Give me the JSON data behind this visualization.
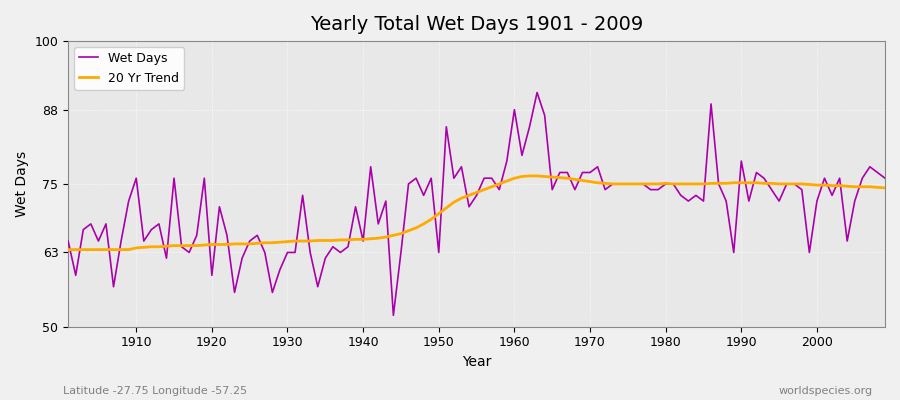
{
  "title": "Yearly Total Wet Days 1901 - 2009",
  "xlabel": "Year",
  "ylabel": "Wet Days",
  "subtitle": "Latitude -27.75 Longitude -57.25",
  "watermark": "worldspecies.org",
  "ylim": [
    50,
    100
  ],
  "yticks": [
    50,
    63,
    75,
    88,
    100
  ],
  "fig_facecolor": "#f0f0f0",
  "plot_bg_color": "#e8e8e8",
  "wet_days_color": "#aa00aa",
  "trend_color": "#ffaa00",
  "legend_wet": "Wet Days",
  "legend_trend": "20 Yr Trend",
  "years": [
    1901,
    1902,
    1903,
    1904,
    1905,
    1906,
    1907,
    1908,
    1909,
    1910,
    1911,
    1912,
    1913,
    1914,
    1915,
    1916,
    1917,
    1918,
    1919,
    1920,
    1921,
    1922,
    1923,
    1924,
    1925,
    1926,
    1927,
    1928,
    1929,
    1930,
    1931,
    1932,
    1933,
    1934,
    1935,
    1936,
    1937,
    1938,
    1939,
    1940,
    1941,
    1942,
    1943,
    1944,
    1945,
    1946,
    1947,
    1948,
    1949,
    1950,
    1951,
    1952,
    1953,
    1954,
    1955,
    1956,
    1957,
    1958,
    1959,
    1960,
    1961,
    1962,
    1963,
    1964,
    1965,
    1966,
    1967,
    1968,
    1969,
    1970,
    1971,
    1972,
    1973,
    1974,
    1975,
    1976,
    1977,
    1978,
    1979,
    1980,
    1981,
    1982,
    1983,
    1984,
    1985,
    1986,
    1987,
    1988,
    1989,
    1990,
    1991,
    1992,
    1993,
    1994,
    1995,
    1996,
    1997,
    1998,
    1999,
    2000,
    2001,
    2002,
    2003,
    2004,
    2005,
    2006,
    2007,
    2008,
    2009
  ],
  "wet_days": [
    65,
    59,
    67,
    68,
    65,
    68,
    57,
    65,
    72,
    76,
    65,
    67,
    68,
    62,
    76,
    64,
    63,
    66,
    76,
    59,
    71,
    66,
    56,
    62,
    65,
    66,
    63,
    56,
    60,
    63,
    63,
    73,
    63,
    57,
    62,
    64,
    63,
    64,
    71,
    65,
    78,
    68,
    72,
    52,
    63,
    75,
    76,
    73,
    76,
    63,
    85,
    76,
    78,
    71,
    73,
    76,
    76,
    74,
    79,
    88,
    80,
    85,
    91,
    87,
    74,
    77,
    77,
    74,
    77,
    77,
    78,
    74,
    75,
    75,
    75,
    75,
    75,
    74,
    74,
    75,
    75,
    73,
    72,
    73,
    72,
    89,
    75,
    72,
    63,
    79,
    72,
    77,
    76,
    74,
    72,
    75,
    75,
    74,
    63,
    72,
    76,
    73,
    76,
    65,
    72,
    76,
    78,
    77,
    76
  ],
  "trend_years": [
    1901,
    1902,
    1903,
    1904,
    1905,
    1906,
    1907,
    1908,
    1909,
    1910,
    1911,
    1912,
    1913,
    1914,
    1915,
    1916,
    1917,
    1918,
    1919,
    1920,
    1921,
    1922,
    1923,
    1924,
    1925,
    1926,
    1927,
    1928,
    1929,
    1930,
    1931,
    1932,
    1933,
    1934,
    1935,
    1936,
    1937,
    1938,
    1939,
    1940,
    1941,
    1942,
    1943,
    1944,
    1945,
    1946,
    1947,
    1948,
    1949,
    1950,
    1951,
    1952,
    1953,
    1954,
    1955,
    1956,
    1957,
    1958,
    1959,
    1960,
    1961,
    1962,
    1963,
    1964,
    1965,
    1966,
    1967,
    1968,
    1969,
    1970,
    1971,
    1972,
    1973,
    1974,
    1975,
    1976,
    1977,
    1978,
    1979,
    1980,
    1981,
    1982,
    1983,
    1984,
    1985,
    1986,
    1987,
    1988,
    1989,
    1990,
    1991,
    1992,
    1993,
    1994,
    1995,
    1996,
    1997,
    1998,
    1999,
    2000,
    2001,
    2002,
    2003,
    2004,
    2005,
    2006,
    2007,
    2008,
    2009
  ],
  "trend_values": [
    63.5,
    63.5,
    63.5,
    63.5,
    63.5,
    63.5,
    63.5,
    63.5,
    63.5,
    63.8,
    63.9,
    64.0,
    64.0,
    64.1,
    64.2,
    64.2,
    64.2,
    64.2,
    64.3,
    64.4,
    64.4,
    64.4,
    64.5,
    64.5,
    64.5,
    64.6,
    64.7,
    64.7,
    64.8,
    64.9,
    65.0,
    65.0,
    65.0,
    65.1,
    65.1,
    65.1,
    65.2,
    65.2,
    65.3,
    65.3,
    65.4,
    65.5,
    65.7,
    66.0,
    66.3,
    66.8,
    67.3,
    68.0,
    68.8,
    69.8,
    70.8,
    71.8,
    72.5,
    73.0,
    73.5,
    74.0,
    74.5,
    75.0,
    75.5,
    76.0,
    76.3,
    76.4,
    76.4,
    76.3,
    76.2,
    76.1,
    76.0,
    75.8,
    75.6,
    75.4,
    75.2,
    75.1,
    75.0,
    75.0,
    75.0,
    75.0,
    75.0,
    75.0,
    75.0,
    75.1,
    75.0,
    75.0,
    75.0,
    75.0,
    75.0,
    75.1,
    75.1,
    75.1,
    75.2,
    75.2,
    75.2,
    75.2,
    75.1,
    75.1,
    75.0,
    75.0,
    75.0,
    75.0,
    74.9,
    74.8,
    74.8,
    74.7,
    74.7,
    74.6,
    74.5,
    74.5,
    74.5,
    74.4,
    74.3
  ]
}
